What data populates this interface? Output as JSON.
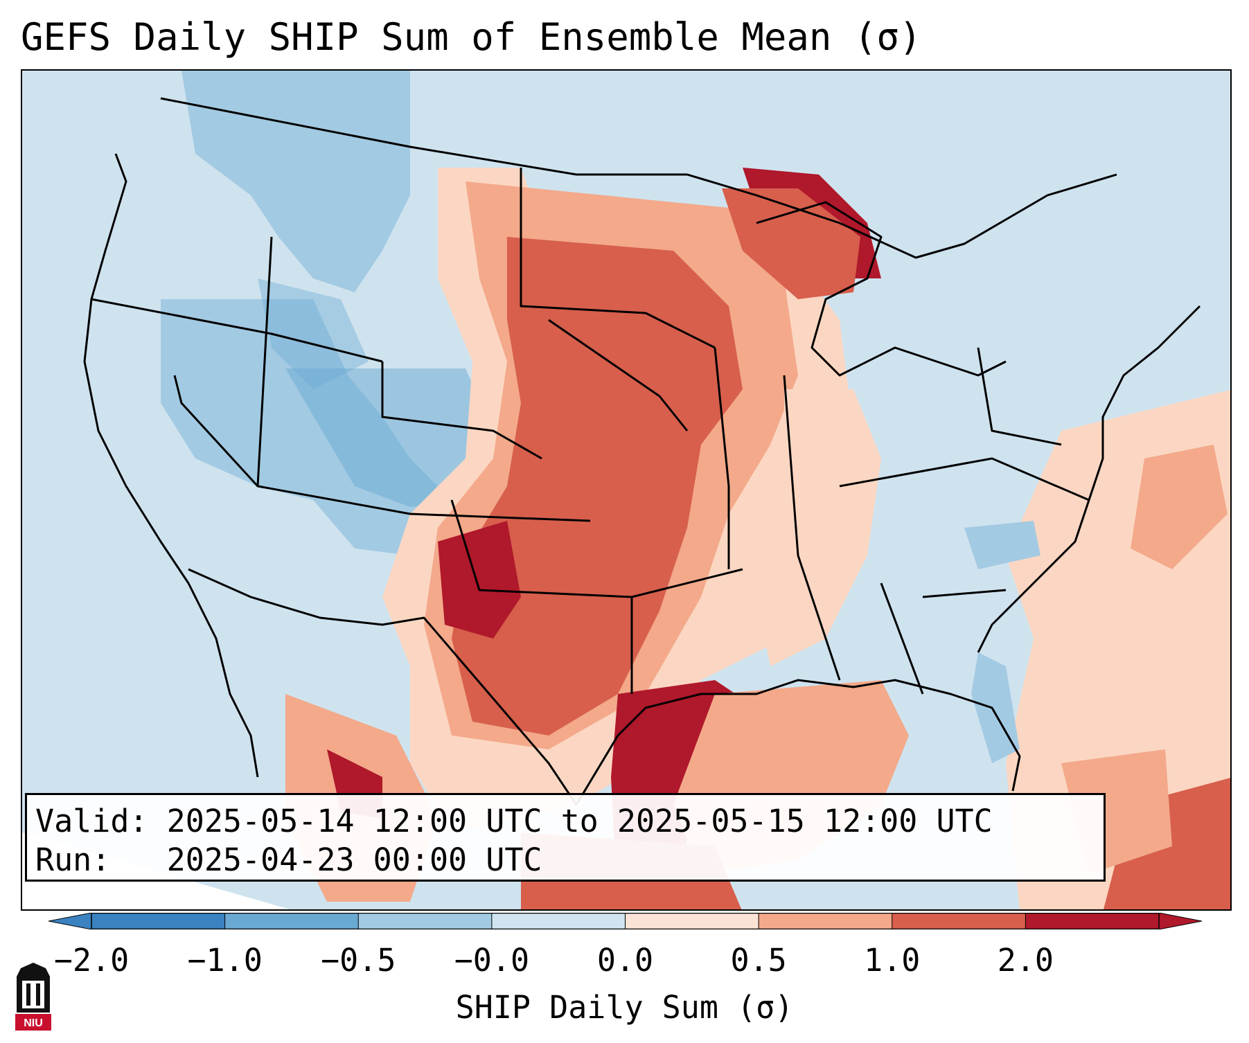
{
  "title": "GEFS Daily SHIP Sum of Ensemble Mean (σ)",
  "info": {
    "valid_label": "Valid:",
    "valid_value": "2025-05-14 12:00 UTC to 2025-05-15 12:00 UTC",
    "run_label": "Run:",
    "run_value": "2025-04-23 00:00 UTC"
  },
  "colorbar": {
    "label": "SHIP Daily Sum (σ)",
    "ticks": [
      "−2.0",
      "−1.0",
      "−0.5",
      "−0.0",
      "0.0",
      "0.5",
      "1.0",
      "2.0"
    ],
    "colors": [
      "#3a82c0",
      "#6aa9d2",
      "#a3cae3",
      "#d0e5f0",
      "#fbe3d6",
      "#f3a98a",
      "#d75f4c",
      "#b0182b"
    ]
  },
  "palette": {
    "ocean": "#cfe3ef",
    "light_blue": "#a3cae3",
    "mid_blue": "#6aa9d2",
    "light_red": "#fbd7c3",
    "mid_red": "#f3a98a",
    "red": "#d75f4c",
    "dark_red": "#b0182b"
  },
  "logo": {
    "icon": "niu-logo-icon",
    "text": "NIU"
  }
}
